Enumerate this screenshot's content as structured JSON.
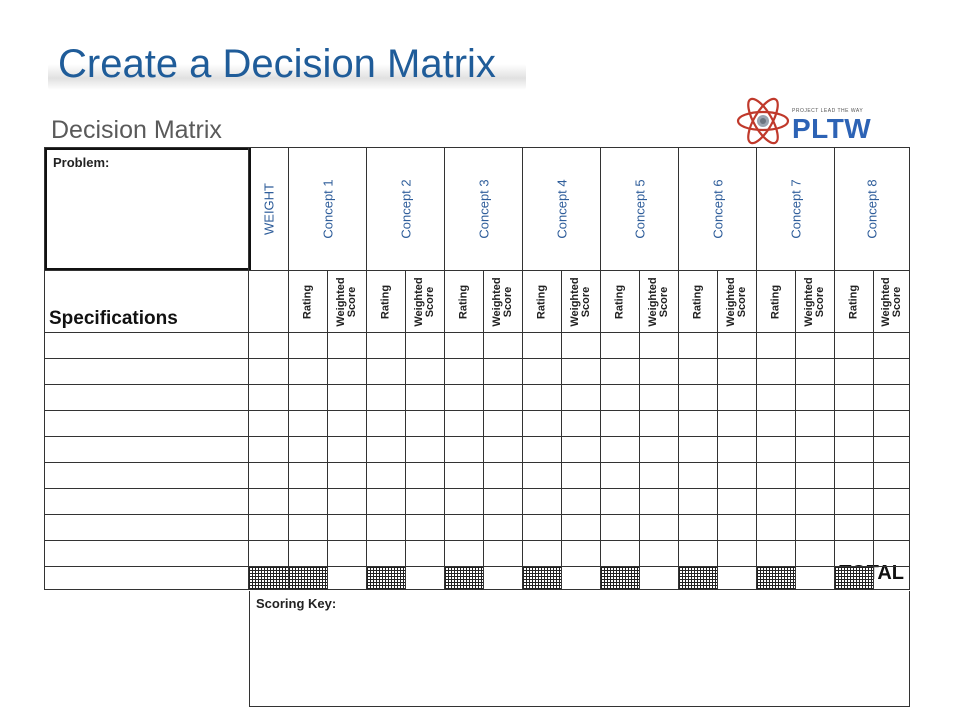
{
  "slide": {
    "title": "Create a Decision Matrix"
  },
  "matrix": {
    "title": "Decision Matrix",
    "problem_label": "Problem:",
    "weight_label": "WEIGHT",
    "concepts": [
      "Concept 1",
      "Concept 2",
      "Concept 3",
      "Concept 4",
      "Concept 5",
      "Concept 6",
      "Concept 7",
      "Concept 8"
    ],
    "rating_label": "Rating",
    "weighted_label_line1": "Weighted",
    "weighted_label_line2": "Score",
    "specifications_label": "Specifications",
    "spec_row_count": 9,
    "total_label": "TOTAL",
    "scoring_key_label": "Scoring Key:"
  },
  "logo": {
    "name": "PLTW",
    "tagline": "PROJECT LEAD THE WAY",
    "colors": {
      "blue": "#2d63b5",
      "red": "#c0392b"
    }
  },
  "icons": [
    "atom-logo-icon"
  ],
  "colors": {
    "title": "#1f5c99",
    "concept_text": "#2e5d9a",
    "grid_line": "#333333"
  }
}
